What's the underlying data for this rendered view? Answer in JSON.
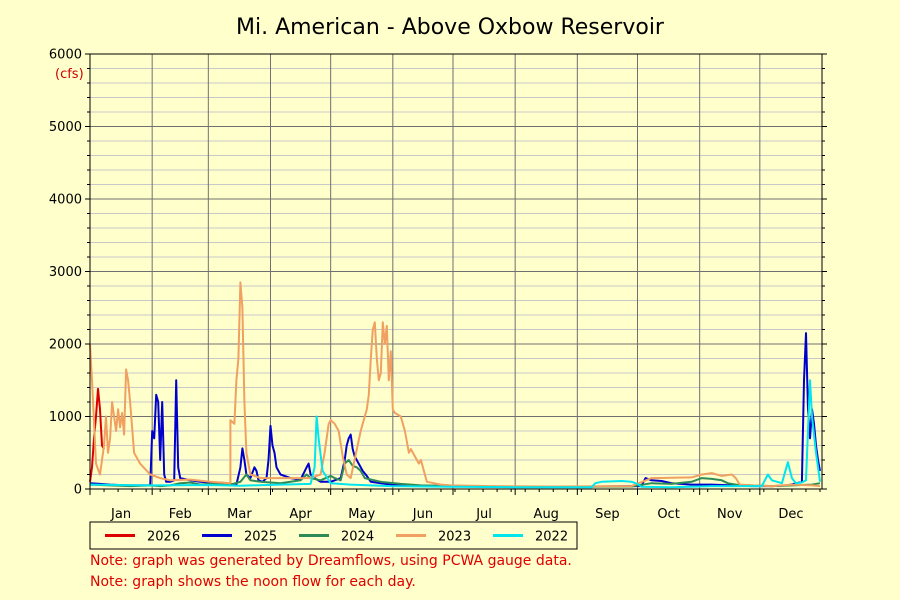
{
  "chart_data": {
    "type": "line",
    "title": "Mi. American - Above Oxbow Reservoir",
    "unit_label": "(cfs)",
    "ylim": [
      0,
      6000
    ],
    "y_ticks": [
      "0",
      "1000",
      "2000",
      "3000",
      "4000",
      "5000",
      "6000"
    ],
    "xlim": [
      0,
      365
    ],
    "month_labels": [
      "Jan",
      "Feb",
      "Mar",
      "Apr",
      "May",
      "Jun",
      "Jul",
      "Aug",
      "Sep",
      "Oct",
      "Nov",
      "Dec"
    ],
    "grid": true,
    "legend_placement": "bottom",
    "series": [
      {
        "name": "2022",
        "color": "#00e5ee",
        "points": [
          [
            0,
            60
          ],
          [
            30,
            50
          ],
          [
            60,
            55
          ],
          [
            75,
            45
          ],
          [
            95,
            60
          ],
          [
            110,
            70
          ],
          [
            112,
            300
          ],
          [
            113,
            1000
          ],
          [
            114,
            700
          ],
          [
            116,
            250
          ],
          [
            120,
            80
          ],
          [
            130,
            60
          ],
          [
            140,
            50
          ],
          [
            150,
            40
          ],
          [
            180,
            30
          ],
          [
            210,
            25
          ],
          [
            250,
            25
          ],
          [
            252,
            80
          ],
          [
            255,
            100
          ],
          [
            265,
            110
          ],
          [
            270,
            100
          ],
          [
            273,
            70
          ],
          [
            275,
            30
          ],
          [
            290,
            25
          ],
          [
            310,
            40
          ],
          [
            320,
            40
          ],
          [
            335,
            40
          ],
          [
            338,
            200
          ],
          [
            340,
            120
          ],
          [
            345,
            80
          ],
          [
            348,
            370
          ],
          [
            350,
            150
          ],
          [
            352,
            80
          ],
          [
            355,
            90
          ],
          [
            357,
            120
          ],
          [
            359,
            1500
          ],
          [
            360,
            1000
          ],
          [
            362,
            500
          ],
          [
            364,
            100
          ]
        ]
      },
      {
        "name": "2023",
        "color": "#f0a060",
        "points": [
          [
            0,
            2000
          ],
          [
            1,
            1500
          ],
          [
            3,
            350
          ],
          [
            5,
            200
          ],
          [
            7,
            600
          ],
          [
            8,
            1000
          ],
          [
            9,
            500
          ],
          [
            10,
            700
          ],
          [
            11,
            1200
          ],
          [
            12,
            1000
          ],
          [
            13,
            800
          ],
          [
            14,
            1100
          ],
          [
            15,
            850
          ],
          [
            16,
            1050
          ],
          [
            17,
            750
          ],
          [
            18,
            1650
          ],
          [
            19,
            1500
          ],
          [
            20,
            1200
          ],
          [
            22,
            500
          ],
          [
            25,
            350
          ],
          [
            30,
            200
          ],
          [
            35,
            150
          ],
          [
            40,
            120
          ],
          [
            50,
            130
          ],
          [
            60,
            100
          ],
          [
            70,
            80
          ],
          [
            70,
            950
          ],
          [
            72,
            900
          ],
          [
            73,
            1500
          ],
          [
            74,
            1800
          ],
          [
            75,
            2850
          ],
          [
            76,
            2500
          ],
          [
            77,
            1200
          ],
          [
            78,
            500
          ],
          [
            80,
            200
          ],
          [
            85,
            150
          ],
          [
            95,
            150
          ],
          [
            110,
            150
          ],
          [
            115,
            200
          ],
          [
            117,
            500
          ],
          [
            119,
            900
          ],
          [
            120,
            950
          ],
          [
            122,
            900
          ],
          [
            124,
            800
          ],
          [
            126,
            450
          ],
          [
            128,
            200
          ],
          [
            130,
            150
          ],
          [
            135,
            800
          ],
          [
            136,
            900
          ],
          [
            137,
            1000
          ],
          [
            138,
            1100
          ],
          [
            139,
            1300
          ],
          [
            140,
            1800
          ],
          [
            141,
            2200
          ],
          [
            142,
            2300
          ],
          [
            143,
            1800
          ],
          [
            144,
            1500
          ],
          [
            145,
            1600
          ],
          [
            146,
            2300
          ],
          [
            147,
            2000
          ],
          [
            148,
            2250
          ],
          [
            149,
            1500
          ],
          [
            150,
            1900
          ],
          [
            151,
            1100
          ],
          [
            152,
            1050
          ],
          [
            155,
            1000
          ],
          [
            157,
            800
          ],
          [
            159,
            500
          ],
          [
            160,
            550
          ],
          [
            162,
            450
          ],
          [
            164,
            350
          ],
          [
            165,
            400
          ],
          [
            166,
            300
          ],
          [
            168,
            100
          ],
          [
            175,
            60
          ],
          [
            180,
            50
          ],
          [
            200,
            40
          ],
          [
            230,
            35
          ],
          [
            270,
            40
          ],
          [
            280,
            150
          ],
          [
            300,
            160
          ],
          [
            305,
            200
          ],
          [
            310,
            220
          ],
          [
            315,
            180
          ],
          [
            320,
            200
          ],
          [
            322,
            150
          ],
          [
            324,
            60
          ],
          [
            330,
            50
          ],
          [
            340,
            40
          ],
          [
            350,
            60
          ],
          [
            360,
            50
          ],
          [
            364,
            40
          ]
        ]
      },
      {
        "name": "2024",
        "color": "#2e8b57",
        "points": [
          [
            0,
            60
          ],
          [
            10,
            50
          ],
          [
            20,
            40
          ],
          [
            30,
            50
          ],
          [
            35,
            40
          ],
          [
            40,
            50
          ],
          [
            45,
            80
          ],
          [
            50,
            90
          ],
          [
            55,
            60
          ],
          [
            60,
            70
          ],
          [
            70,
            60
          ],
          [
            75,
            100
          ],
          [
            78,
            200
          ],
          [
            80,
            120
          ],
          [
            85,
            100
          ],
          [
            95,
            80
          ],
          [
            100,
            100
          ],
          [
            105,
            120
          ],
          [
            108,
            200
          ],
          [
            110,
            150
          ],
          [
            115,
            120
          ],
          [
            120,
            180
          ],
          [
            122,
            150
          ],
          [
            125,
            120
          ],
          [
            127,
            350
          ],
          [
            129,
            400
          ],
          [
            131,
            320
          ],
          [
            133,
            300
          ],
          [
            135,
            250
          ],
          [
            137,
            150
          ],
          [
            145,
            100
          ],
          [
            155,
            70
          ],
          [
            165,
            50
          ],
          [
            180,
            40
          ],
          [
            200,
            30
          ],
          [
            240,
            30
          ],
          [
            270,
            35
          ],
          [
            280,
            80
          ],
          [
            290,
            70
          ],
          [
            300,
            100
          ],
          [
            305,
            150
          ],
          [
            310,
            140
          ],
          [
            315,
            120
          ],
          [
            318,
            80
          ],
          [
            322,
            60
          ],
          [
            330,
            50
          ],
          [
            340,
            40
          ],
          [
            350,
            50
          ],
          [
            360,
            60
          ],
          [
            364,
            80
          ]
        ]
      },
      {
        "name": "2025",
        "color": "#0000cc",
        "points": [
          [
            0,
            80
          ],
          [
            5,
            70
          ],
          [
            10,
            60
          ],
          [
            20,
            50
          ],
          [
            30,
            50
          ],
          [
            31,
            800
          ],
          [
            32,
            700
          ],
          [
            33,
            1300
          ],
          [
            34,
            1200
          ],
          [
            35,
            400
          ],
          [
            36,
            1200
          ],
          [
            37,
            200
          ],
          [
            38,
            100
          ],
          [
            40,
            100
          ],
          [
            42,
            120
          ],
          [
            43,
            1500
          ],
          [
            44,
            300
          ],
          [
            45,
            150
          ],
          [
            50,
            120
          ],
          [
            55,
            100
          ],
          [
            60,
            90
          ],
          [
            65,
            90
          ],
          [
            70,
            70
          ],
          [
            73,
            60
          ],
          [
            75,
            300
          ],
          [
            76,
            560
          ],
          [
            77,
            400
          ],
          [
            78,
            200
          ],
          [
            80,
            150
          ],
          [
            82,
            300
          ],
          [
            83,
            250
          ],
          [
            84,
            120
          ],
          [
            86,
            100
          ],
          [
            88,
            150
          ],
          [
            89,
            400
          ],
          [
            90,
            870
          ],
          [
            91,
            600
          ],
          [
            92,
            500
          ],
          [
            93,
            300
          ],
          [
            95,
            200
          ],
          [
            100,
            150
          ],
          [
            105,
            130
          ],
          [
            108,
            300
          ],
          [
            109,
            350
          ],
          [
            110,
            200
          ],
          [
            112,
            150
          ],
          [
            115,
            100
          ],
          [
            120,
            100
          ],
          [
            125,
            150
          ],
          [
            127,
            400
          ],
          [
            128,
            600
          ],
          [
            129,
            700
          ],
          [
            130,
            750
          ],
          [
            131,
            550
          ],
          [
            132,
            450
          ],
          [
            134,
            350
          ],
          [
            136,
            250
          ],
          [
            138,
            180
          ],
          [
            140,
            100
          ],
          [
            145,
            80
          ],
          [
            150,
            60
          ],
          [
            160,
            50
          ],
          [
            180,
            40
          ],
          [
            200,
            30
          ],
          [
            240,
            30
          ],
          [
            275,
            40
          ],
          [
            276,
            100
          ],
          [
            277,
            150
          ],
          [
            280,
            120
          ],
          [
            285,
            110
          ],
          [
            290,
            80
          ],
          [
            300,
            60
          ],
          [
            310,
            60
          ],
          [
            320,
            50
          ],
          [
            330,
            40
          ],
          [
            340,
            40
          ],
          [
            348,
            50
          ],
          [
            355,
            100
          ],
          [
            356,
            1500
          ],
          [
            357,
            2150
          ],
          [
            358,
            1100
          ],
          [
            359,
            700
          ],
          [
            360,
            1100
          ],
          [
            361,
            900
          ],
          [
            362,
            600
          ],
          [
            363,
            400
          ],
          [
            364,
            250
          ]
        ]
      },
      {
        "name": "2026",
        "color": "#dd0000",
        "points": [
          [
            0,
            100
          ],
          [
            1,
            300
          ],
          [
            2,
            700
          ],
          [
            3,
            1000
          ],
          [
            4,
            1380
          ],
          [
            5,
            1100
          ],
          [
            6,
            600
          ],
          [
            7,
            550
          ]
        ]
      }
    ]
  },
  "notes": [
    "Note: graph was generated by Dreamflows, using PCWA gauge data.",
    "Note: graph shows the noon flow for each day."
  ]
}
